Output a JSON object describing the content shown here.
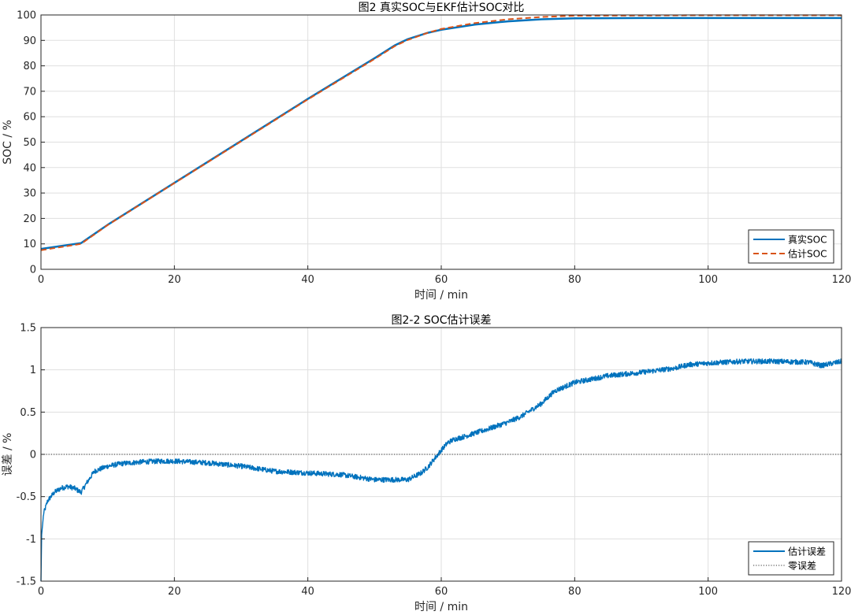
{
  "chart_data": [
    {
      "type": "line",
      "title": "图2 真实SOC与EKF估计SOC对比",
      "xlabel": "时间 / min",
      "ylabel": "SOC / %",
      "xlim": [
        0,
        120
      ],
      "ylim": [
        0,
        100
      ],
      "xticks": [
        0,
        20,
        40,
        60,
        80,
        100,
        120
      ],
      "yticks": [
        0,
        10,
        20,
        30,
        40,
        50,
        60,
        70,
        80,
        90,
        100
      ],
      "grid": true,
      "legend_position": "bottom-right",
      "series": [
        {
          "name": "真实SOC",
          "color": "#0072BD",
          "style": "solid",
          "x": [
            0,
            6,
            10,
            20,
            30,
            40,
            50,
            53,
            55,
            58,
            60,
            65,
            70,
            75,
            80,
            90,
            100,
            110,
            120
          ],
          "y": [
            8,
            10.3,
            17.5,
            34,
            50.5,
            67,
            83,
            88,
            90.5,
            93,
            94.2,
            96.2,
            97.5,
            98.3,
            98.7,
            98.8,
            98.8,
            98.8,
            98.8
          ]
        },
        {
          "name": "估计SOC",
          "color": "#D95319",
          "style": "dashed",
          "x": [
            0,
            6,
            10,
            20,
            30,
            40,
            50,
            53,
            55,
            58,
            60,
            65,
            70,
            75,
            80,
            90,
            100,
            110,
            120
          ],
          "y": [
            7.5,
            10,
            17.4,
            33.9,
            50.3,
            66.8,
            82.7,
            87.7,
            90.2,
            93,
            94.5,
            96.8,
            98.3,
            99.2,
            99.7,
            99.8,
            99.9,
            99.9,
            99.9
          ]
        }
      ]
    },
    {
      "type": "line",
      "title": "图2-2 SOC估计误差",
      "xlabel": "时间 / min",
      "ylabel": "误差 / %",
      "xlim": [
        0,
        120
      ],
      "ylim": [
        -1.5,
        1.5
      ],
      "xticks": [
        0,
        20,
        40,
        60,
        80,
        100,
        120
      ],
      "yticks": [
        -1.5,
        -1,
        -0.5,
        0,
        0.5,
        1,
        1.5
      ],
      "ytick_labels": [
        "-1.5",
        "-1",
        "-0.5",
        "0",
        "0.5",
        "1",
        "1.5"
      ],
      "grid": true,
      "legend_position": "bottom-right",
      "series": [
        {
          "name": "估计误差",
          "color": "#0072BD",
          "style": "solid",
          "noise_amplitude": 0.03,
          "x": [
            0,
            0.1,
            0.4,
            1,
            2,
            3,
            4,
            5,
            6,
            7,
            8,
            10,
            12,
            15,
            18,
            20,
            25,
            30,
            35,
            40,
            45,
            50,
            55,
            57,
            58,
            59,
            60,
            61,
            62,
            63,
            65,
            67,
            70,
            72,
            75,
            77,
            80,
            85,
            90,
            95,
            97,
            100,
            105,
            110,
            115,
            117,
            120
          ],
          "y": [
            -1.5,
            -0.95,
            -0.7,
            -0.55,
            -0.45,
            -0.4,
            -0.38,
            -0.4,
            -0.45,
            -0.32,
            -0.2,
            -0.14,
            -0.11,
            -0.09,
            -0.08,
            -0.08,
            -0.1,
            -0.14,
            -0.2,
            -0.22,
            -0.24,
            -0.3,
            -0.3,
            -0.22,
            -0.15,
            -0.05,
            0.05,
            0.14,
            0.18,
            0.2,
            0.25,
            0.3,
            0.38,
            0.45,
            0.6,
            0.75,
            0.85,
            0.93,
            0.97,
            1.02,
            1.06,
            1.08,
            1.1,
            1.1,
            1.09,
            1.05,
            1.1
          ]
        },
        {
          "name": "零误差",
          "color": "#333333",
          "style": "dotted",
          "x": [
            0,
            120
          ],
          "y": [
            0,
            0
          ]
        }
      ]
    }
  ]
}
